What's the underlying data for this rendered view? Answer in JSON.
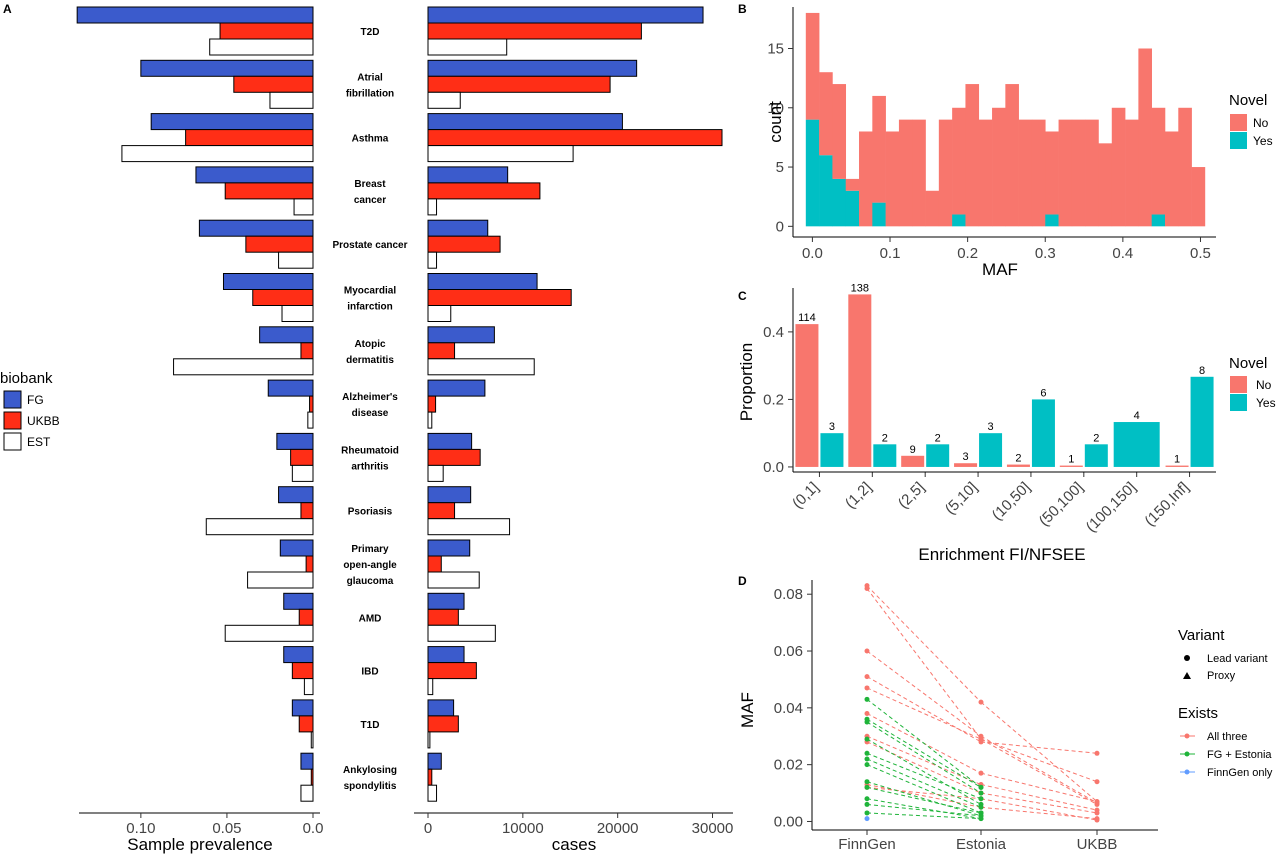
{
  "colors": {
    "FG": "#3b5bcc",
    "UKBB": "#ff2e16",
    "EST": "#ffffff",
    "No": "#f8766d",
    "Yes": "#00bfc4",
    "All three": "#f8766d",
    "FG + Estonia": "#1fb43a",
    "FinnGen only": "#619cff"
  },
  "panels": {
    "A": "A",
    "B": "B",
    "C": "C",
    "D": "D"
  },
  "legend_biobank": {
    "title": "biobank",
    "items": [
      "FG",
      "UKBB",
      "EST"
    ]
  },
  "chart_data": [
    {
      "id": "A",
      "type": "bar",
      "orientation": "horizontal",
      "categories": [
        "T2D",
        "Atrial fibrillation",
        "Asthma",
        "Breast cancer",
        "Prostate cancer",
        "Myocardial infarction",
        "Atopic dermatitis",
        "Alzheimer's disease",
        "Rheumatoid arthritis",
        "Psoriasis",
        "Primary open-angle glaucoma",
        "AMD",
        "IBD",
        "T1D",
        "Ankylosing spondylitis"
      ],
      "category_lines": [
        [
          "T2D"
        ],
        [
          "Atrial",
          "fibrillation"
        ],
        [
          "Asthma"
        ],
        [
          "Breast",
          "cancer"
        ],
        [
          "Prostate cancer"
        ],
        [
          "Myocardial",
          "infarction"
        ],
        [
          "Atopic",
          "dermatitis"
        ],
        [
          "Alzheimer's",
          "disease"
        ],
        [
          "Rheumatoid",
          "arthritis"
        ],
        [
          "Psoriasis"
        ],
        [
          "Primary",
          "open-angle",
          "glaucoma"
        ],
        [
          "AMD"
        ],
        [
          "IBD"
        ],
        [
          "T1D"
        ],
        [
          "Ankylosing",
          "spondylitis"
        ]
      ],
      "left": {
        "xlabel": "Sample prevalence",
        "xlim": [
          0,
          0.14
        ],
        "reversed": true,
        "ticks": [
          0.1,
          0.05,
          0.0
        ],
        "tick_labels": [
          "0.10",
          "0.05",
          "0.0"
        ],
        "series": [
          {
            "name": "FG",
            "values": [
              0.137,
              0.1,
              0.094,
              0.068,
              0.066,
              0.052,
              0.031,
              0.026,
              0.021,
              0.02,
              0.019,
              0.017,
              0.017,
              0.012,
              0.007
            ]
          },
          {
            "name": "UKBB",
            "values": [
              0.054,
              0.046,
              0.074,
              0.051,
              0.039,
              0.035,
              0.007,
              0.002,
              0.013,
              0.007,
              0.004,
              0.008,
              0.012,
              0.008,
              0.001
            ]
          },
          {
            "name": "EST",
            "values": [
              0.06,
              0.025,
              0.111,
              0.011,
              0.02,
              0.018,
              0.081,
              0.003,
              0.012,
              0.062,
              0.038,
              0.051,
              0.005,
              0.001,
              0.007
            ]
          }
        ]
      },
      "right": {
        "xlabel": "cases",
        "xlim": [
          0,
          31000
        ],
        "ticks": [
          0,
          10000,
          20000,
          30000
        ],
        "tick_labels": [
          "0",
          "10000",
          "20000",
          "30000"
        ],
        "series": [
          {
            "name": "FG",
            "values": [
              29000,
              22000,
              20500,
              8400,
              6300,
              11500,
              7000,
              6000,
              4600,
              4500,
              4400,
              3800,
              3800,
              2700,
              1400
            ]
          },
          {
            "name": "UKBB",
            "values": [
              22500,
              19200,
              31000,
              11800,
              7600,
              15100,
              2800,
              800,
              5500,
              2800,
              1400,
              3200,
              5100,
              3200,
              400
            ]
          },
          {
            "name": "EST",
            "values": [
              8300,
              3400,
              15300,
              900,
              900,
              2400,
              11200,
              400,
              1600,
              8600,
              5400,
              7100,
              500,
              200,
              900
            ]
          }
        ]
      }
    },
    {
      "id": "B",
      "type": "bar",
      "subtype": "stacked-histogram",
      "xlabel": "MAF",
      "ylabel": "count",
      "xlim": [
        -0.025,
        0.52
      ],
      "ylim": [
        -0.9,
        18.5
      ],
      "xticks": [
        0.0,
        0.1,
        0.2,
        0.3,
        0.4,
        0.5
      ],
      "xtick_labels": [
        "0.0",
        "0.1",
        "0.2",
        "0.3",
        "0.4",
        "0.5"
      ],
      "yticks": [
        0,
        5,
        10,
        15
      ],
      "ytick_labels": [
        "0",
        "5",
        "10",
        "15"
      ],
      "bin_start": -0.0085,
      "bin_width": 0.01714,
      "legend": {
        "title": "Novel",
        "items": [
          "No",
          "Yes"
        ]
      },
      "series": [
        {
          "name": "No",
          "values": [
            9,
            7,
            8,
            1,
            8,
            9,
            8,
            9,
            9,
            3,
            9,
            9,
            12,
            9,
            10,
            12,
            9,
            9,
            7,
            9,
            9,
            9,
            7,
            10,
            9,
            15,
            9,
            8,
            10,
            5
          ]
        },
        {
          "name": "Yes",
          "values": [
            9,
            6,
            4,
            3,
            0,
            2,
            0,
            0,
            0,
            0,
            0,
            1,
            0,
            0,
            0,
            0,
            0,
            0,
            1,
            0,
            0,
            0,
            0,
            0,
            0,
            0,
            1,
            0,
            0,
            0
          ]
        }
      ]
    },
    {
      "id": "C",
      "type": "bar",
      "xlabel": "Enrichment FI/NFSEE",
      "ylabel": "Proportion",
      "ylim": [
        -0.015,
        0.53
      ],
      "yticks": [
        0.0,
        0.2,
        0.4
      ],
      "ytick_labels": [
        "0.0",
        "0.2",
        "0.4"
      ],
      "categories": [
        "(0,1]",
        "(1,2]",
        "(2,5]",
        "(5,10]",
        "(10,50]",
        "(50,100]",
        "(100,150]",
        "(150,Inf]"
      ],
      "legend": {
        "title": "Novel",
        "items": [
          "No",
          "Yes"
        ]
      },
      "series": [
        {
          "name": "No",
          "values": [
            0.423,
            0.511,
            0.033,
            0.011,
            0.007,
            0.004,
            null,
            0.004
          ],
          "labels": [
            "114",
            "138",
            "9",
            "3",
            "2",
            "1",
            null,
            "1"
          ]
        },
        {
          "name": "Yes",
          "values": [
            0.1,
            0.067,
            0.067,
            0.1,
            0.2,
            0.067,
            0.133,
            0.267
          ],
          "labels": [
            "3",
            "2",
            "2",
            "3",
            "6",
            "2",
            "4",
            "8"
          ]
        }
      ]
    },
    {
      "id": "D",
      "type": "line",
      "xlabel": "",
      "ylabel": "MAF",
      "categories": [
        "FinnGen",
        "Estonia",
        "UKBB"
      ],
      "ylim": [
        -0.003,
        0.085
      ],
      "yticks": [
        0.0,
        0.02,
        0.04,
        0.06,
        0.08
      ],
      "ytick_labels": [
        "0.00",
        "0.02",
        "0.04",
        "0.06",
        "0.08"
      ],
      "legend_variant": {
        "title": "Variant",
        "items": [
          "Lead variant",
          "Proxy"
        ]
      },
      "legend_exists": {
        "title": "Exists",
        "items": [
          "All three",
          "FG + Estonia",
          "FinnGen only"
        ]
      },
      "series": [
        {
          "group": "All three",
          "values": [
            0.083,
            0.042,
            0.007
          ]
        },
        {
          "group": "All three",
          "values": [
            0.082,
            0.029,
            0.006
          ]
        },
        {
          "group": "All three",
          "values": [
            0.06,
            0.03,
            0.0065
          ]
        },
        {
          "group": "All three",
          "values": [
            0.051,
            0.028,
            0.024
          ]
        },
        {
          "group": "All three",
          "values": [
            0.047,
            0.029,
            0.014
          ]
        },
        {
          "group": "All three",
          "values": [
            0.038,
            0.017,
            0.007
          ]
        },
        {
          "group": "All three",
          "values": [
            0.03,
            0.013,
            0.004
          ]
        },
        {
          "group": "All three",
          "values": [
            0.028,
            0.01,
            0.003
          ]
        },
        {
          "group": "All three",
          "values": [
            0.013,
            0.005,
            0.001
          ]
        },
        {
          "group": "All three",
          "values": [
            0.012,
            0.008,
            0.0005
          ]
        },
        {
          "group": "FG + Estonia",
          "values": [
            0.043,
            0.012,
            null
          ]
        },
        {
          "group": "FG + Estonia",
          "values": [
            0.036,
            0.012,
            null
          ]
        },
        {
          "group": "FG + Estonia",
          "values": [
            0.035,
            0.01,
            null
          ]
        },
        {
          "group": "FG + Estonia",
          "values": [
            0.029,
            0.006,
            null
          ]
        },
        {
          "group": "FG + Estonia",
          "values": [
            0.024,
            0.008,
            null
          ]
        },
        {
          "group": "FG + Estonia",
          "values": [
            0.022,
            0.005,
            null
          ]
        },
        {
          "group": "FG + Estonia",
          "values": [
            0.02,
            0.003,
            null
          ]
        },
        {
          "group": "FG + Estonia",
          "values": [
            0.014,
            0.002,
            null
          ]
        },
        {
          "group": "FG + Estonia",
          "values": [
            0.012,
            0.003,
            null
          ]
        },
        {
          "group": "FG + Estonia",
          "values": [
            0.008,
            0.001,
            null
          ]
        },
        {
          "group": "FG + Estonia",
          "values": [
            0.006,
            0.002,
            null
          ]
        },
        {
          "group": "FG + Estonia",
          "values": [
            0.003,
            0.001,
            null
          ]
        },
        {
          "group": "FinnGen only",
          "values": [
            0.001,
            null,
            null
          ]
        }
      ]
    }
  ]
}
